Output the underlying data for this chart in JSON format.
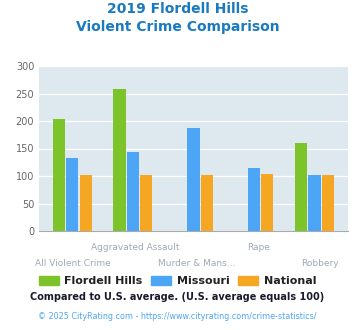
{
  "title_line1": "2019 Flordell Hills",
  "title_line2": "Violent Crime Comparison",
  "title_color": "#1a7abf",
  "flordell_color": "#7dc42a",
  "missouri_color": "#4da6f5",
  "national_color": "#f5a623",
  "flordell_values": [
    204,
    258,
    null,
    null,
    160
  ],
  "missouri_values": [
    132,
    143,
    187,
    114,
    102
  ],
  "national_values": [
    102,
    102,
    102,
    103,
    102
  ],
  "ylim": [
    0,
    300
  ],
  "yticks": [
    0,
    50,
    100,
    150,
    200,
    250,
    300
  ],
  "background_color": "#dde9ef",
  "fig_bg_color": "#ffffff",
  "xlabel_top_color": "#a0a8b8",
  "xlabel_bot_color": "#a0a8b8",
  "top_row_labels": {
    "1": "Aggravated Assault",
    "3": "Rape"
  },
  "bot_row_labels": {
    "0": "All Violent Crime",
    "2": "Murder & Mans...",
    "4": "Robbery"
  },
  "legend_labels": [
    "Flordell Hills",
    "Missouri",
    "National"
  ],
  "legend_colors": [
    "#7dc42a",
    "#4da6f5",
    "#f5a623"
  ],
  "footnote1": "Compared to U.S. average. (U.S. average equals 100)",
  "footnote2": "© 2025 CityRating.com - https://www.cityrating.com/crime-statistics/",
  "footnote1_color": "#1a1a2e",
  "footnote2_color": "#4da6f5"
}
